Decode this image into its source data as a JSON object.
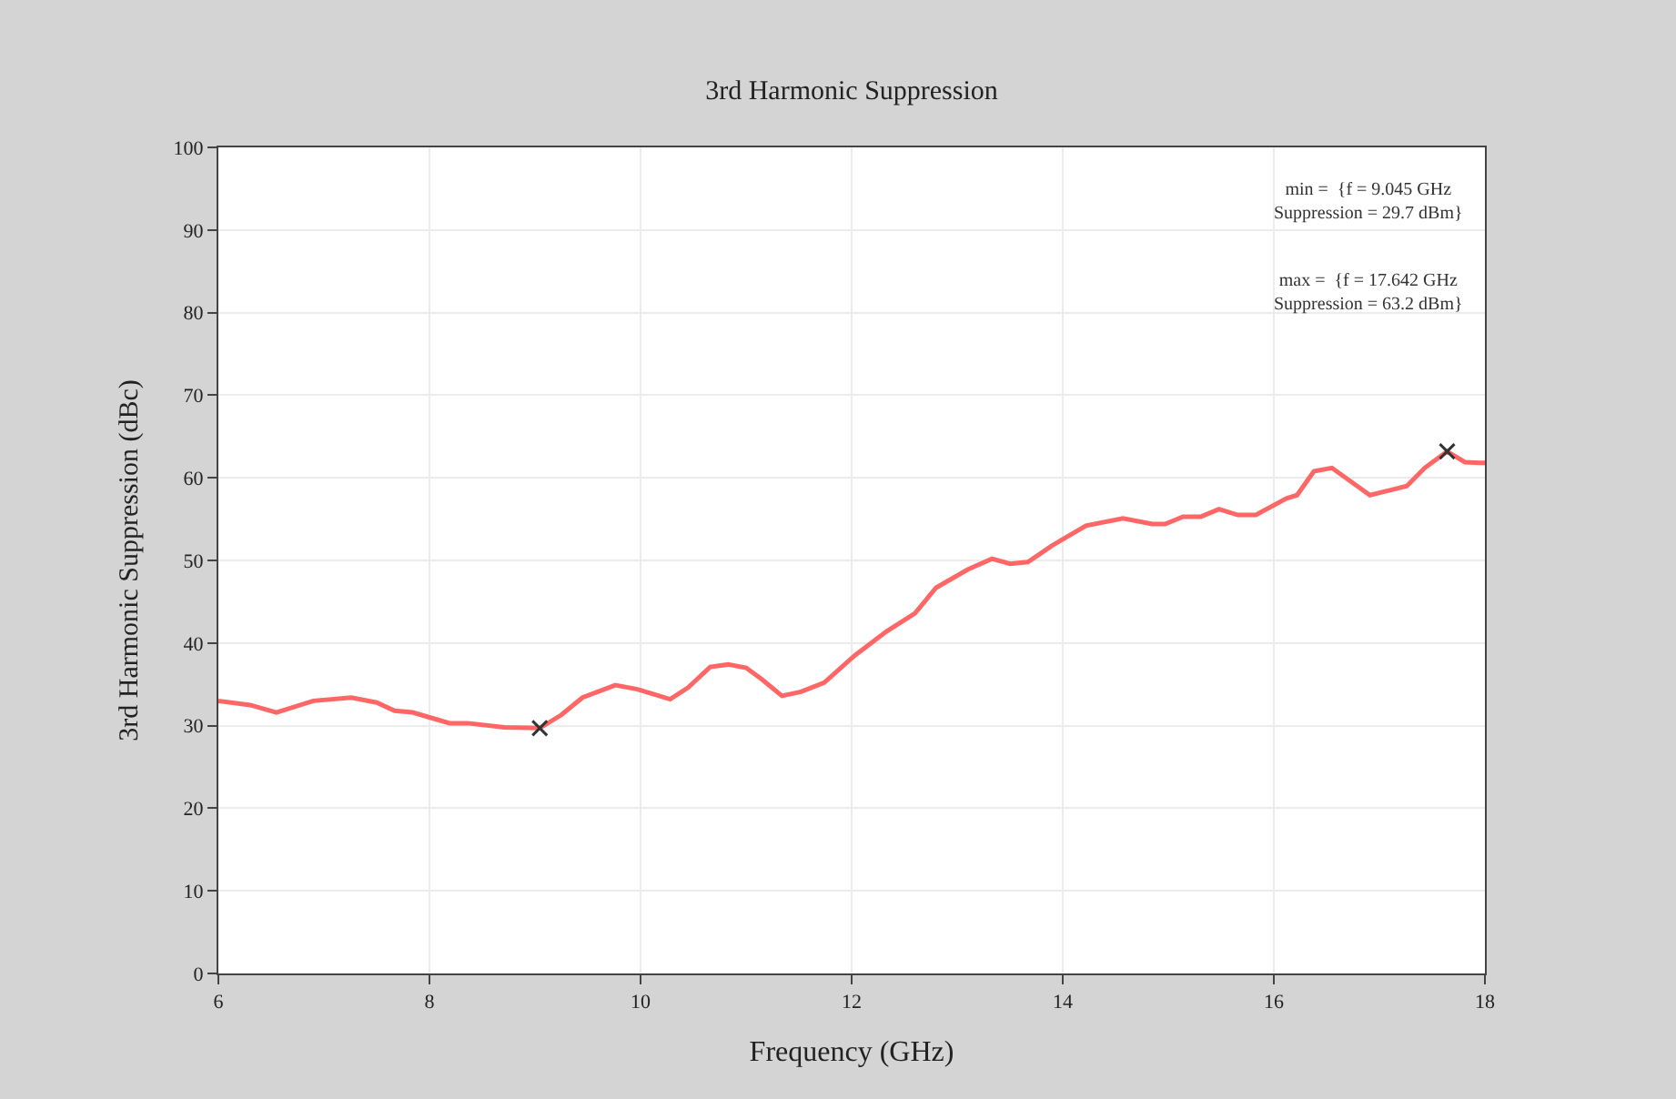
{
  "chart_data": {
    "type": "line",
    "title": "3rd Harmonic Suppression",
    "xlabel": "Frequency (GHz)",
    "ylabel": "3rd Harmonic Suppression (dBc)",
    "series": [
      {
        "color": "#ff6666",
        "x": [
          6.0,
          6.3,
          6.55,
          6.9,
          7.26,
          7.5,
          7.67,
          7.84,
          8.0,
          8.19,
          8.36,
          8.71,
          9.045,
          9.25,
          9.45,
          9.76,
          9.97,
          10.28,
          10.45,
          10.66,
          10.83,
          11.0,
          11.15,
          11.34,
          11.52,
          11.74,
          12.03,
          12.33,
          12.6,
          12.8,
          13.1,
          13.33,
          13.5,
          13.67,
          13.9,
          14.22,
          14.57,
          14.85,
          14.97,
          15.14,
          15.31,
          15.48,
          15.66,
          15.83,
          16.12,
          16.22,
          16.38,
          16.55,
          16.91,
          17.26,
          17.43,
          17.642,
          17.81,
          17.95,
          18.0
        ],
        "values": [
          33.0,
          32.5,
          31.6,
          33.0,
          33.4,
          32.8,
          31.8,
          31.6,
          31.0,
          30.3,
          30.3,
          29.8,
          29.7,
          31.3,
          33.4,
          34.9,
          34.4,
          33.2,
          34.6,
          37.1,
          37.4,
          37.0,
          35.6,
          33.6,
          34.1,
          35.2,
          38.5,
          41.4,
          43.6,
          46.7,
          48.9,
          50.2,
          49.6,
          49.8,
          51.8,
          54.2,
          55.1,
          54.4,
          54.4,
          55.3,
          55.3,
          56.2,
          55.5,
          55.5,
          57.5,
          57.9,
          60.8,
          61.2,
          57.9,
          59.0,
          61.2,
          63.2,
          61.9,
          61.8,
          61.8
        ]
      },
      {
        "type": "scatter",
        "marker": "cross",
        "color": "#333333",
        "x": [
          9.045,
          17.642
        ],
        "values": [
          29.7,
          63.2
        ]
      }
    ],
    "annotations": [
      "min =  {f = 9.045 GHz\nSuppression = 29.7 dBm}",
      "max =  {f = 17.642 GHz\nSuppression = 63.2 dBm}"
    ],
    "xlim": [
      6,
      18
    ],
    "xticks": [
      6,
      8,
      10,
      12,
      14,
      16,
      18
    ],
    "ylim": [
      0,
      100
    ],
    "yticks": [
      0,
      10,
      20,
      30,
      40,
      50,
      60,
      70,
      80,
      90,
      100
    ],
    "grid": true,
    "marker": "none",
    "line_style": "solid"
  }
}
